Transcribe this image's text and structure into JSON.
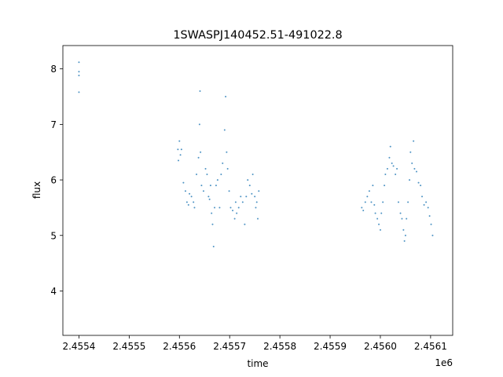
{
  "chart_data": {
    "type": "scatter",
    "title": "1SWASPJ140452.51-491022.8",
    "xlabel": "time",
    "ylabel": "flux",
    "x_offset_label": "1e6",
    "xlim": [
      2455368,
      2456144
    ],
    "ylim": [
      3.2,
      8.42
    ],
    "x_ticks": [
      2455400,
      2455500,
      2455600,
      2455700,
      2455800,
      2455900,
      2456000,
      2456100
    ],
    "x_tick_labels": [
      "2.4554",
      "2.4555",
      "2.4556",
      "2.4557",
      "2.4558",
      "2.4559",
      "2.4560",
      "2.4561"
    ],
    "y_ticks": [
      4,
      5,
      6,
      7,
      8
    ],
    "y_tick_labels": [
      "4",
      "5",
      "6",
      "7",
      "8"
    ],
    "grid": false,
    "legend": "none",
    "marker_color": "#1f77b4",
    "series": [
      {
        "points": [
          [
            2455400,
            7.95
          ],
          [
            2455400,
            8.12
          ],
          [
            2455400,
            7.88
          ],
          [
            2455400,
            7.58
          ],
          [
            2455597,
            6.55
          ],
          [
            2455598,
            6.35
          ],
          [
            2455600,
            6.7
          ],
          [
            2455602,
            6.45
          ],
          [
            2455604,
            6.55
          ],
          [
            2455608,
            5.95
          ],
          [
            2455612,
            5.8
          ],
          [
            2455615,
            5.6
          ],
          [
            2455618,
            5.55
          ],
          [
            2455620,
            5.75
          ],
          [
            2455624,
            5.7
          ],
          [
            2455628,
            5.6
          ],
          [
            2455630,
            5.5
          ],
          [
            2455634,
            6.1
          ],
          [
            2455638,
            6.4
          ],
          [
            2455640,
            7.0
          ],
          [
            2455641,
            7.6
          ],
          [
            2455642,
            6.5
          ],
          [
            2455644,
            5.9
          ],
          [
            2455648,
            5.8
          ],
          [
            2455652,
            6.2
          ],
          [
            2455655,
            6.1
          ],
          [
            2455658,
            5.7
          ],
          [
            2455660,
            5.65
          ],
          [
            2455662,
            5.9
          ],
          [
            2455664,
            5.4
          ],
          [
            2455666,
            5.2
          ],
          [
            2455668,
            4.8
          ],
          [
            2455670,
            5.5
          ],
          [
            2455673,
            5.9
          ],
          [
            2455676,
            6.0
          ],
          [
            2455680,
            5.5
          ],
          [
            2455683,
            6.1
          ],
          [
            2455686,
            6.3
          ],
          [
            2455690,
            6.9
          ],
          [
            2455692,
            7.5
          ],
          [
            2455694,
            6.5
          ],
          [
            2455696,
            6.2
          ],
          [
            2455699,
            5.8
          ],
          [
            2455702,
            5.5
          ],
          [
            2455706,
            5.45
          ],
          [
            2455710,
            5.3
          ],
          [
            2455712,
            5.6
          ],
          [
            2455714,
            5.4
          ],
          [
            2455718,
            5.5
          ],
          [
            2455722,
            5.7
          ],
          [
            2455726,
            5.6
          ],
          [
            2455730,
            5.2
          ],
          [
            2455733,
            5.7
          ],
          [
            2455736,
            6.0
          ],
          [
            2455740,
            5.9
          ],
          [
            2455744,
            5.75
          ],
          [
            2455746,
            6.1
          ],
          [
            2455750,
            5.7
          ],
          [
            2455752,
            5.5
          ],
          [
            2455754,
            5.6
          ],
          [
            2455756,
            5.3
          ],
          [
            2455758,
            5.8
          ],
          [
            2455963,
            5.5
          ],
          [
            2455966,
            5.45
          ],
          [
            2455970,
            5.6
          ],
          [
            2455974,
            5.7
          ],
          [
            2455978,
            5.8
          ],
          [
            2455982,
            5.6
          ],
          [
            2455985,
            5.9
          ],
          [
            2455988,
            5.55
          ],
          [
            2455990,
            5.4
          ],
          [
            2455994,
            5.3
          ],
          [
            2455997,
            5.2
          ],
          [
            2456000,
            5.1
          ],
          [
            2456002,
            5.4
          ],
          [
            2456005,
            5.6
          ],
          [
            2456008,
            5.9
          ],
          [
            2456010,
            6.1
          ],
          [
            2456014,
            6.2
          ],
          [
            2456018,
            6.4
          ],
          [
            2456020,
            6.6
          ],
          [
            2456023,
            6.3
          ],
          [
            2456026,
            6.25
          ],
          [
            2456030,
            6.1
          ],
          [
            2456033,
            6.2
          ],
          [
            2456036,
            5.6
          ],
          [
            2456040,
            5.4
          ],
          [
            2456043,
            5.3
          ],
          [
            2456046,
            5.1
          ],
          [
            2456048,
            4.9
          ],
          [
            2456050,
            5.0
          ],
          [
            2456052,
            5.3
          ],
          [
            2456055,
            5.6
          ],
          [
            2456058,
            6.0
          ],
          [
            2456060,
            6.5
          ],
          [
            2456063,
            6.3
          ],
          [
            2456066,
            6.7
          ],
          [
            2456068,
            6.2
          ],
          [
            2456072,
            6.15
          ],
          [
            2456076,
            5.95
          ],
          [
            2456080,
            5.9
          ],
          [
            2456083,
            5.7
          ],
          [
            2456087,
            5.55
          ],
          [
            2456091,
            5.6
          ],
          [
            2456095,
            5.5
          ],
          [
            2456098,
            5.35
          ],
          [
            2456101,
            5.2
          ],
          [
            2456104,
            5.0
          ]
        ]
      }
    ]
  }
}
